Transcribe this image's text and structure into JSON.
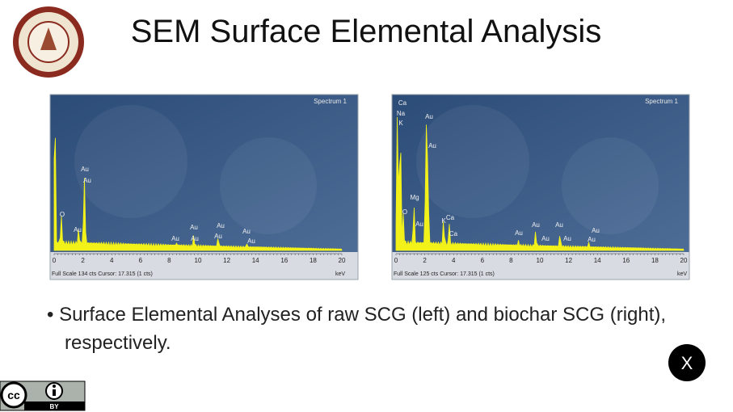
{
  "header": {
    "title": "SEM Surface Elemental Analysis"
  },
  "spectra": [
    {
      "name": "Spectrum 1",
      "peak_labels": [
        "Au",
        "Au",
        "O",
        "Au",
        "Au",
        "Au",
        "Au",
        "Au",
        "Au",
        "Au",
        "Au"
      ],
      "ticks": [
        0,
        2,
        4,
        6,
        8,
        10,
        12,
        14,
        16,
        18,
        20
      ],
      "footer": "Full Scale 134 cts Cursor: 17.315  (1 cts)",
      "unit": "keV"
    },
    {
      "name": "Spectrum 1",
      "peak_labels": [
        "Ca",
        "Na",
        "K",
        "Au",
        "Au",
        "Mg",
        "O",
        "Au",
        "Ca",
        "K",
        "Ca",
        "Au",
        "Au",
        "Au",
        "Au",
        "Au",
        "Au",
        "Au"
      ],
      "ticks": [
        0,
        2,
        4,
        6,
        8,
        10,
        12,
        14,
        16,
        18,
        20
      ],
      "footer": "Full Scale 125 cts Cursor: 17.315  (1 cts)",
      "unit": "keV"
    }
  ],
  "bullet": "Surface Elemental Analyses of raw SCG (left) and biochar SCG (right), respectively.",
  "close_button": "X",
  "license": {
    "badge": "BY"
  }
}
